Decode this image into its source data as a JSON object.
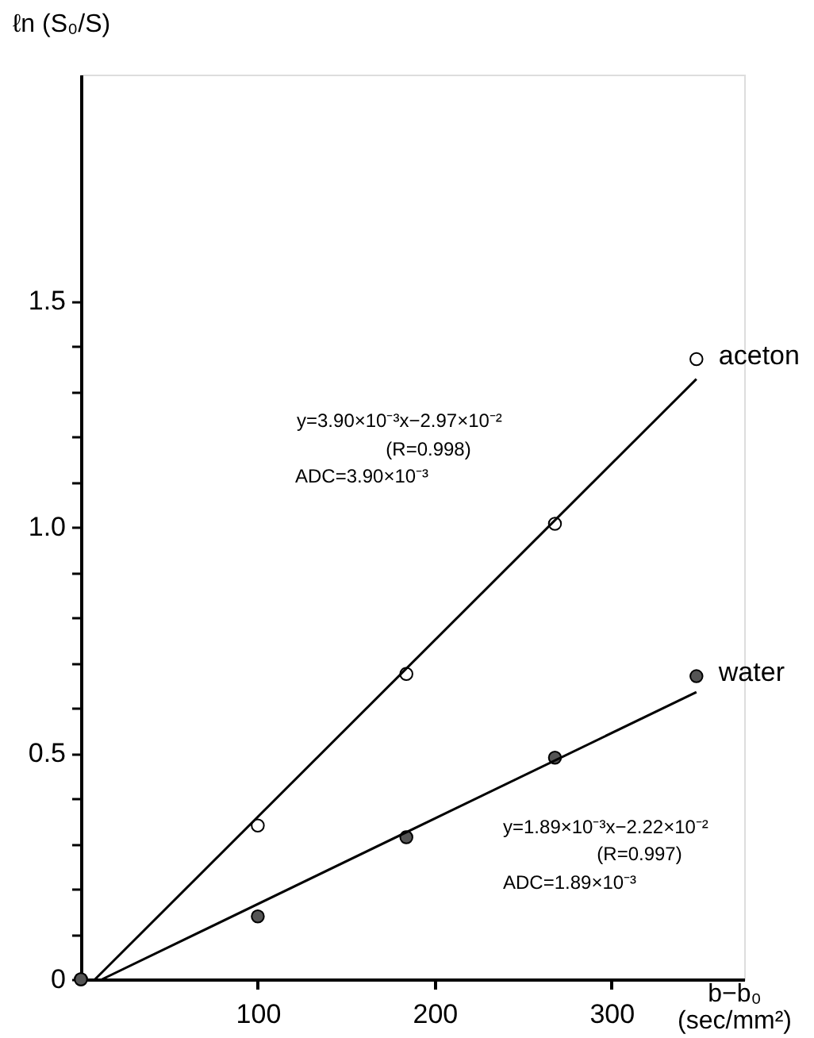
{
  "chart_data": {
    "type": "scatter",
    "ylabel": "ℓn (S₀/S)",
    "xlabel": "b−b₀ (sec/mm²)",
    "x": [
      0,
      100,
      184,
      268,
      348
    ],
    "series": [
      {
        "name": "aceton",
        "color": "#ffffff",
        "marker": "circle",
        "values": [
          0,
          0.34,
          0.675,
          1.007,
          1.371
        ]
      },
      {
        "name": "water",
        "color": "#555555",
        "marker": "circle",
        "values": [
          0,
          0.139,
          0.314,
          0.49,
          0.67
        ]
      },
      {
        "type": "line",
        "color": "#000000",
        "marker": "none",
        "line_style": "solid",
        "x": [
          8,
          348
        ],
        "values": [
          0,
          1.327
        ]
      },
      {
        "type": "line",
        "color": "#000000",
        "marker": "none",
        "line_style": "solid",
        "x": [
          12,
          348
        ],
        "values": [
          0,
          0.635
        ]
      }
    ],
    "annotations": [
      "y=3.90×10⁻³x−2.97×10⁻²",
      "(R=0.998)",
      "ADC=3.90×10⁻³",
      "y=1.89×10⁻³x−2.22×10⁻²",
      "(R=0.997)",
      "ADC=1.89×10⁻³"
    ],
    "xlim": [
      0,
      375
    ],
    "ylim": [
      0,
      2.0
    ],
    "xticks": [
      100,
      200,
      300
    ],
    "yticks": [
      0,
      {
        "value": 0.1,
        "label": null
      },
      {
        "value": 0.2,
        "label": null
      },
      {
        "value": 0.3,
        "label": null
      },
      {
        "value": 0.4,
        "label": null
      },
      0.5,
      {
        "value": 0.6,
        "label": null
      },
      {
        "value": 0.7,
        "label": null
      },
      {
        "value": 0.8,
        "label": null
      },
      {
        "value": 0.9,
        "label": null
      },
      {
        "value": 1.0,
        "label": "1.0"
      },
      {
        "value": 1.1,
        "label": null
      },
      {
        "value": 1.2,
        "label": null
      },
      {
        "value": 1.3,
        "label": null
      },
      {
        "value": 1.4,
        "label": null
      },
      1.5
    ],
    "grid": false
  }
}
